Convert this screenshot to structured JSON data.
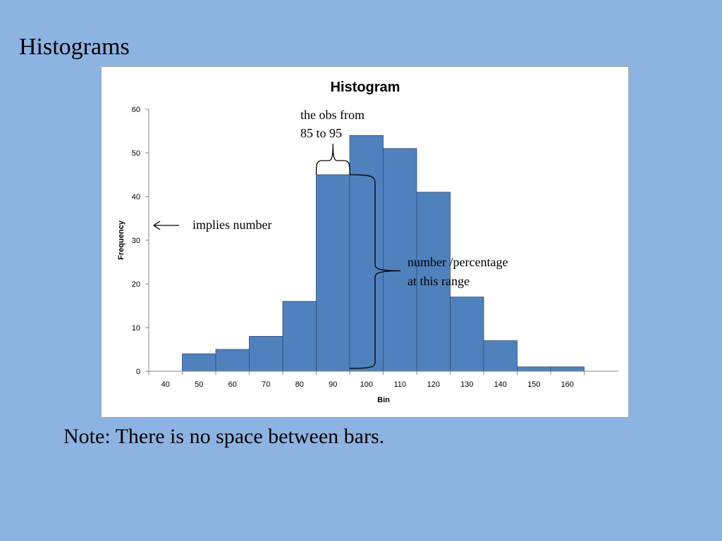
{
  "slide": {
    "title": "Histograms",
    "note": "Note: There is no space between bars."
  },
  "chart_data": {
    "type": "bar",
    "title": "Histogram",
    "xlabel": "Bin",
    "ylabel": "Frequency",
    "categories": [
      "40",
      "50",
      "60",
      "70",
      "80",
      "90",
      "100",
      "110",
      "120",
      "130",
      "140",
      "150",
      "160"
    ],
    "values": [
      0,
      4,
      5,
      8,
      16,
      45,
      54,
      51,
      41,
      17,
      7,
      1,
      1
    ],
    "ylim": [
      0,
      60
    ],
    "yticks": [
      0,
      10,
      20,
      30,
      40,
      50,
      60
    ],
    "bar_gap": 0,
    "grid": false,
    "legend": "none",
    "colors": {
      "bar": "#4f81bd",
      "bar_edge": "#2f4f7a",
      "axis": "#868686"
    },
    "annotations": {
      "bin_range": {
        "lines": [
          "the obs from",
          "85 to 95"
        ],
        "category": "90"
      },
      "frequency_axis": {
        "text": "implies number"
      },
      "bar_height": {
        "lines": [
          "number /percentage",
          "at this range"
        ],
        "category": "100"
      }
    }
  }
}
